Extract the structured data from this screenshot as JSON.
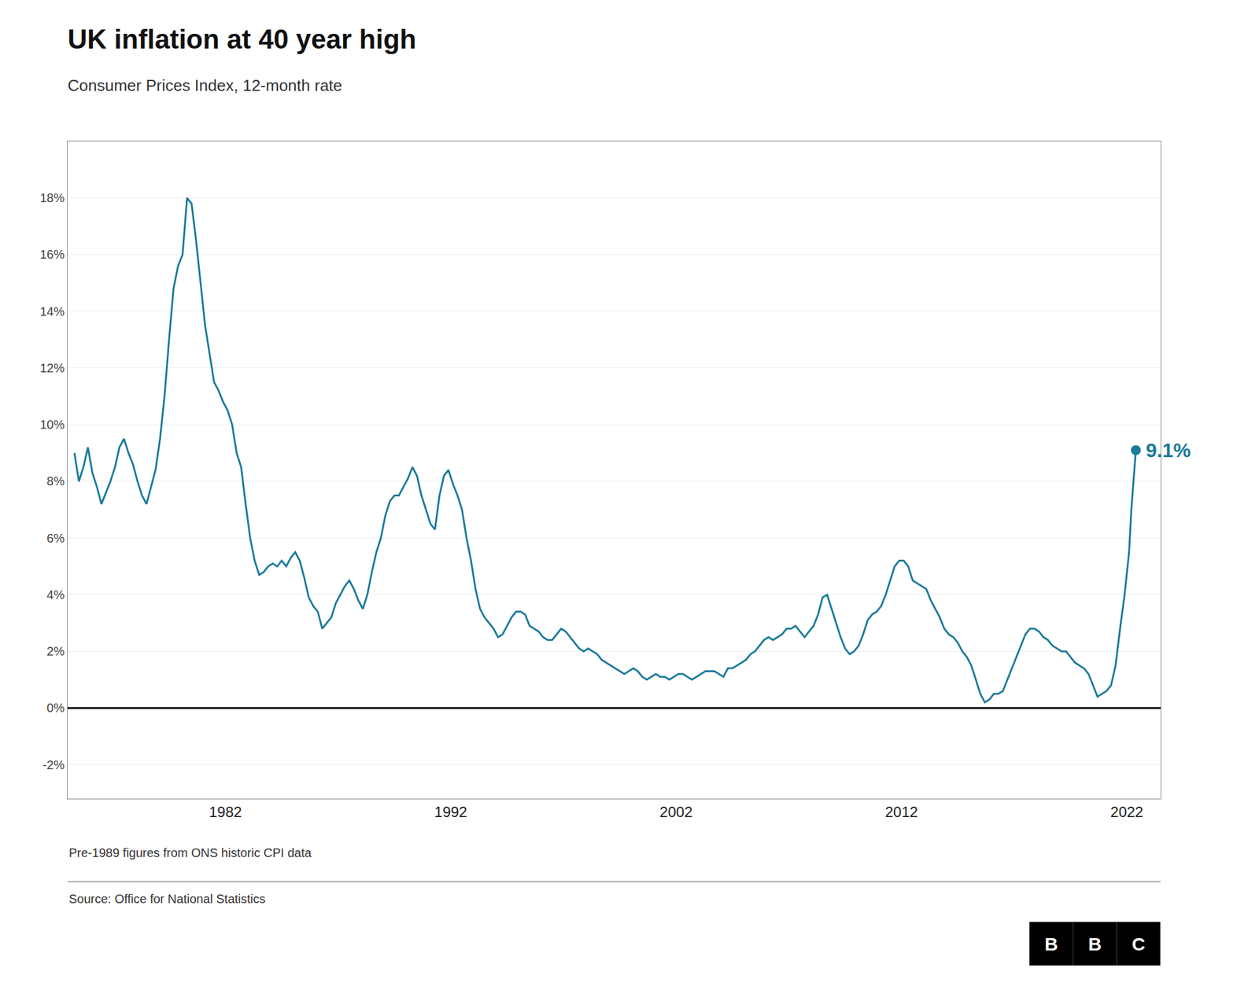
{
  "chart_data": {
    "type": "line",
    "title": "UK inflation at 40 year high",
    "subtitle": "Consumer Prices Index, 12-month rate",
    "footnote": "Pre-1989 figures from ONS historic CPI data",
    "source": "Source: Office for National Statistics",
    "logo": [
      "B",
      "B",
      "C"
    ],
    "color": "#1a7a9a",
    "grid": true,
    "xlim": [
      1975.0,
      2023.5
    ],
    "ylim": [
      -3.2,
      20.0
    ],
    "xticks": [
      1982,
      1992,
      2002,
      2012,
      2022
    ],
    "yticks": [
      {
        "value": -2,
        "label": "-2%"
      },
      {
        "value": 0,
        "label": "0%"
      },
      {
        "value": 2,
        "label": "2%"
      },
      {
        "value": 4,
        "label": "4%"
      },
      {
        "value": 6,
        "label": "6%"
      },
      {
        "value": 8,
        "label": "8%"
      },
      {
        "value": 10,
        "label": "10%"
      },
      {
        "value": 12,
        "label": "12%"
      },
      {
        "value": 14,
        "label": "14%"
      },
      {
        "value": 16,
        "label": "16%"
      },
      {
        "value": 18,
        "label": "18%"
      }
    ],
    "annotations": [
      {
        "x": 2022.4,
        "y": 9.1,
        "text": "9.1%"
      }
    ],
    "x": [
      1975.3,
      1975.5,
      1975.7,
      1975.9,
      1976.1,
      1976.3,
      1976.5,
      1976.7,
      1976.9,
      1977.1,
      1977.3,
      1977.5,
      1977.7,
      1977.9,
      1978.1,
      1978.3,
      1978.5,
      1978.7,
      1978.9,
      1979.1,
      1979.3,
      1979.5,
      1979.7,
      1979.9,
      1980.1,
      1980.3,
      1980.5,
      1980.7,
      1980.9,
      1981.1,
      1981.3,
      1981.5,
      1981.7,
      1981.9,
      1982.1,
      1982.3,
      1982.5,
      1982.7,
      1982.9,
      1983.1,
      1983.3,
      1983.5,
      1983.7,
      1983.9,
      1984.1,
      1984.3,
      1984.5,
      1984.7,
      1984.9,
      1985.1,
      1985.3,
      1985.5,
      1985.7,
      1985.9,
      1986.1,
      1986.3,
      1986.5,
      1986.7,
      1986.9,
      1987.1,
      1987.3,
      1987.5,
      1987.7,
      1987.9,
      1988.1,
      1988.3,
      1988.5,
      1988.7,
      1988.9,
      1989.1,
      1989.3,
      1989.5,
      1989.7,
      1989.9,
      1990.1,
      1990.3,
      1990.5,
      1990.7,
      1990.9,
      1991.1,
      1991.3,
      1991.5,
      1991.7,
      1991.9,
      1992.1,
      1992.3,
      1992.5,
      1992.7,
      1992.9,
      1993.1,
      1993.3,
      1993.5,
      1993.7,
      1993.9,
      1994.1,
      1994.3,
      1994.5,
      1994.7,
      1994.9,
      1995.1,
      1995.3,
      1995.5,
      1995.7,
      1995.9,
      1996.1,
      1996.3,
      1996.5,
      1996.7,
      1996.9,
      1997.1,
      1997.3,
      1997.5,
      1997.7,
      1997.9,
      1998.1,
      1998.3,
      1998.5,
      1998.7,
      1998.9,
      1999.1,
      1999.3,
      1999.5,
      1999.7,
      1999.9,
      2000.1,
      2000.3,
      2000.5,
      2000.7,
      2000.9,
      2001.1,
      2001.3,
      2001.5,
      2001.7,
      2001.9,
      2002.1,
      2002.3,
      2002.5,
      2002.7,
      2002.9,
      2003.1,
      2003.3,
      2003.5,
      2003.7,
      2003.9,
      2004.1,
      2004.3,
      2004.5,
      2004.7,
      2004.9,
      2005.1,
      2005.3,
      2005.5,
      2005.7,
      2005.9,
      2006.1,
      2006.3,
      2006.5,
      2006.7,
      2006.9,
      2007.1,
      2007.3,
      2007.5,
      2007.7,
      2007.9,
      2008.1,
      2008.3,
      2008.5,
      2008.7,
      2008.9,
      2009.1,
      2009.3,
      2009.5,
      2009.7,
      2009.9,
      2010.1,
      2010.3,
      2010.5,
      2010.7,
      2010.9,
      2011.1,
      2011.3,
      2011.5,
      2011.7,
      2011.9,
      2012.1,
      2012.3,
      2012.5,
      2012.7,
      2012.9,
      2013.1,
      2013.3,
      2013.5,
      2013.7,
      2013.9,
      2014.1,
      2014.3,
      2014.5,
      2014.7,
      2014.9,
      2015.1,
      2015.3,
      2015.5,
      2015.7,
      2015.9,
      2016.1,
      2016.3,
      2016.5,
      2016.7,
      2016.9,
      2017.1,
      2017.3,
      2017.5,
      2017.7,
      2017.9,
      2018.1,
      2018.3,
      2018.5,
      2018.7,
      2018.9,
      2019.1,
      2019.3,
      2019.5,
      2019.7,
      2019.9,
      2020.1,
      2020.3,
      2020.5,
      2020.7,
      2020.9,
      2021.1,
      2021.3,
      2021.5,
      2021.7,
      2021.9,
      2022.1,
      2022.2,
      2022.4
    ],
    "values": [
      9.0,
      8.0,
      8.5,
      9.2,
      8.3,
      7.8,
      7.2,
      7.6,
      8.0,
      8.5,
      9.2,
      9.5,
      9.0,
      8.6,
      8.0,
      7.5,
      7.2,
      7.8,
      8.4,
      9.5,
      11.0,
      13.0,
      14.8,
      15.6,
      16.0,
      18.0,
      17.8,
      16.5,
      15.0,
      13.5,
      12.5,
      11.5,
      11.2,
      10.8,
      10.5,
      10.0,
      9.0,
      8.5,
      7.2,
      6.0,
      5.2,
      4.7,
      4.8,
      5.0,
      5.1,
      5.0,
      5.2,
      5.0,
      5.3,
      5.5,
      5.2,
      4.6,
      3.9,
      3.6,
      3.4,
      2.8,
      3.0,
      3.2,
      3.7,
      4.0,
      4.3,
      4.5,
      4.2,
      3.8,
      3.5,
      4.0,
      4.8,
      5.5,
      6.0,
      6.8,
      7.3,
      7.5,
      7.5,
      7.8,
      8.1,
      8.5,
      8.2,
      7.5,
      7.0,
      6.5,
      6.3,
      7.5,
      8.2,
      8.4,
      7.9,
      7.5,
      7.0,
      6.0,
      5.2,
      4.2,
      3.5,
      3.2,
      3.0,
      2.8,
      2.5,
      2.6,
      2.9,
      3.2,
      3.4,
      3.4,
      3.3,
      2.9,
      2.8,
      2.7,
      2.5,
      2.4,
      2.4,
      2.6,
      2.8,
      2.7,
      2.5,
      2.3,
      2.1,
      2.0,
      2.1,
      2.0,
      1.9,
      1.7,
      1.6,
      1.5,
      1.4,
      1.3,
      1.2,
      1.3,
      1.4,
      1.3,
      1.1,
      1.0,
      1.1,
      1.2,
      1.1,
      1.1,
      1.0,
      1.1,
      1.2,
      1.2,
      1.1,
      1.0,
      1.1,
      1.2,
      1.3,
      1.3,
      1.3,
      1.2,
      1.1,
      1.4,
      1.4,
      1.5,
      1.6,
      1.7,
      1.9,
      2.0,
      2.2,
      2.4,
      2.5,
      2.4,
      2.5,
      2.6,
      2.8,
      2.8,
      2.9,
      2.7,
      2.5,
      2.7,
      2.9,
      3.3,
      3.9,
      4.0,
      3.5,
      3.0,
      2.5,
      2.1,
      1.9,
      2.0,
      2.2,
      2.6,
      3.1,
      3.3,
      3.4,
      3.6,
      4.0,
      4.5,
      5.0,
      5.2,
      5.2,
      5.0,
      4.5,
      4.4,
      4.3,
      4.2,
      3.8,
      3.5,
      3.2,
      2.8,
      2.6,
      2.5,
      2.3,
      2.0,
      1.8,
      1.5,
      1.0,
      0.5,
      0.2,
      0.3,
      0.5,
      0.5,
      0.6,
      1.0,
      1.4,
      1.8,
      2.2,
      2.6,
      2.8,
      2.8,
      2.7,
      2.5,
      2.4,
      2.2,
      2.1,
      2.0,
      2.0,
      1.8,
      1.6,
      1.5,
      1.4,
      1.2,
      0.8,
      0.4,
      0.5,
      0.6,
      0.8,
      1.5,
      2.8,
      4.0,
      5.5,
      7.0,
      9.1
    ]
  }
}
